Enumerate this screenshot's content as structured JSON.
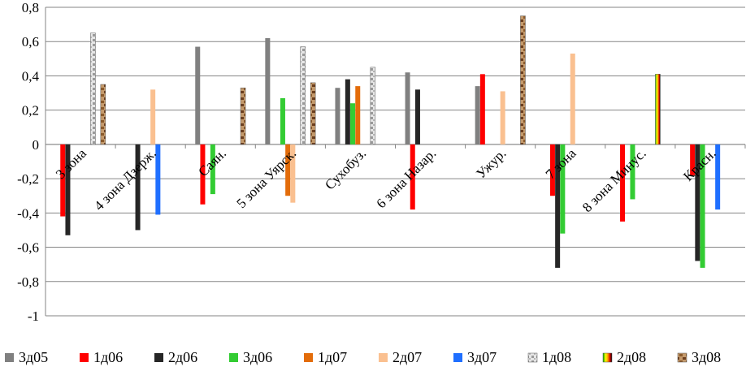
{
  "chart_data": {
    "type": "bar",
    "title": "",
    "xlabel": "",
    "ylabel": "",
    "ylim": [
      -1,
      0.8
    ],
    "yticks": [
      "-1",
      "-0,8",
      "-0,6",
      "-0,4",
      "-0,2",
      "0",
      "0,2",
      "0,4",
      "0,6",
      "0,8"
    ],
    "yticks_values": [
      -1,
      -0.8,
      -0.6,
      -0.4,
      -0.2,
      0,
      0.2,
      0.4,
      0.6,
      0.8
    ],
    "grid": true,
    "legend_position": "bottom",
    "categories": [
      "3 зона",
      "4 зона Дзерж.",
      "Саян.",
      "5 зона Уярск.",
      "Сухобуз.",
      "6 зона Назар.",
      "Ужур.",
      "7 зона",
      "8 зона Минус.",
      "Красн."
    ],
    "series": [
      {
        "name": "3д05",
        "color": "#808080",
        "pattern": "solid",
        "values": [
          null,
          null,
          0.57,
          0.62,
          0.33,
          0.42,
          0.34,
          null,
          null,
          null
        ]
      },
      {
        "name": "1д06",
        "color": "#ff0000",
        "pattern": "solid",
        "values": [
          -0.42,
          null,
          -0.35,
          null,
          null,
          -0.38,
          0.41,
          -0.3,
          -0.45,
          -0.18
        ]
      },
      {
        "name": "2д06",
        "color": "#262626",
        "pattern": "solid",
        "values": [
          -0.53,
          -0.5,
          null,
          null,
          0.38,
          0.32,
          null,
          -0.72,
          null,
          -0.68
        ]
      },
      {
        "name": "3д06",
        "color": "#33cc33",
        "pattern": "solid",
        "values": [
          null,
          null,
          -0.29,
          0.27,
          0.24,
          null,
          null,
          -0.52,
          -0.32,
          -0.72
        ]
      },
      {
        "name": "1д07",
        "color": "#e36c0a",
        "pattern": "solid",
        "values": [
          null,
          null,
          null,
          -0.3,
          0.34,
          null,
          null,
          null,
          null,
          null
        ]
      },
      {
        "name": "2д07",
        "color": "#fac090",
        "pattern": "solid",
        "values": [
          null,
          0.32,
          null,
          -0.34,
          null,
          null,
          0.31,
          0.53,
          null,
          null
        ]
      },
      {
        "name": "3д07",
        "color": "#1f6fff",
        "pattern": "solid",
        "values": [
          null,
          -0.41,
          null,
          null,
          null,
          null,
          null,
          null,
          null,
          -0.38
        ]
      },
      {
        "name": "1д08",
        "color": "#bfbfbf",
        "pattern": "marble",
        "values": [
          0.65,
          null,
          null,
          0.57,
          0.45,
          null,
          null,
          null,
          null,
          null
        ]
      },
      {
        "name": "2д08",
        "color": "#ffcc00",
        "pattern": "rainbow",
        "values": [
          null,
          null,
          null,
          null,
          null,
          null,
          null,
          null,
          0.41,
          null
        ]
      },
      {
        "name": "3д08",
        "color": "#8b5a2b",
        "pattern": "wood",
        "values": [
          0.35,
          null,
          0.33,
          0.36,
          null,
          null,
          0.75,
          null,
          null,
          null
        ]
      }
    ]
  }
}
